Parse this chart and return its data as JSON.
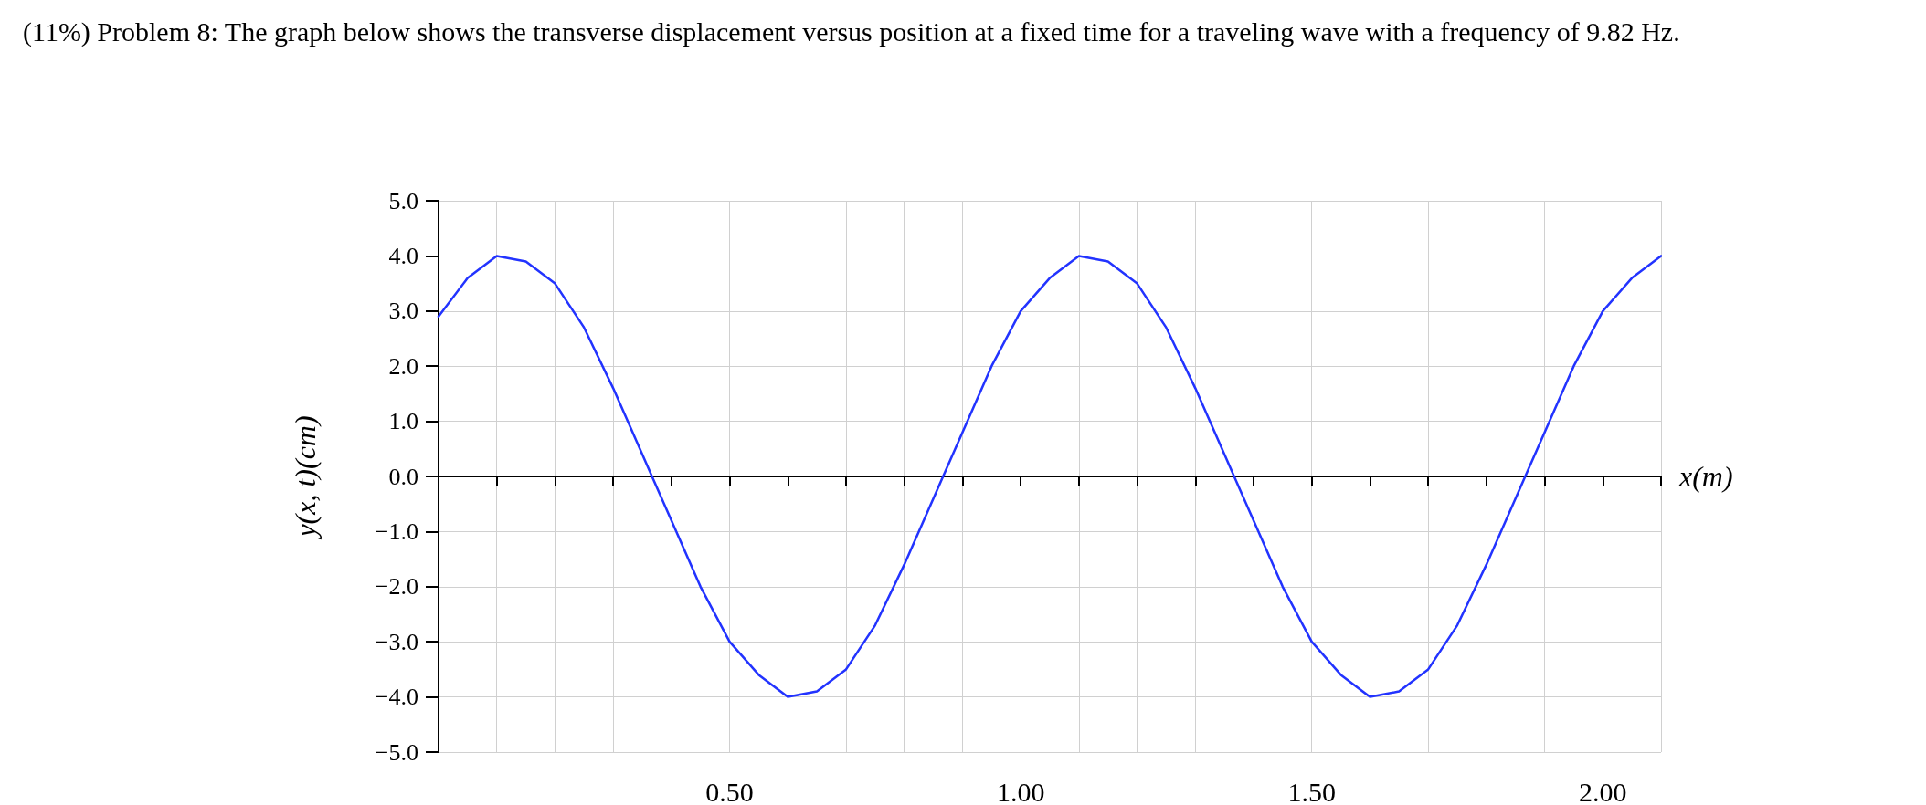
{
  "chart_data": {
    "type": "line",
    "title": "(11%) Problem 8: The graph below shows the transverse displacement versus position at a fixed time for a traveling wave with a frequency of 9.82 Hz.",
    "xlabel": "x(m)",
    "ylabel": "y(x, t)(cm)",
    "x": [
      0,
      0.05,
      0.1,
      0.15,
      0.2,
      0.25,
      0.3,
      0.35,
      0.4,
      0.45,
      0.5,
      0.55,
      0.6,
      0.65,
      0.7,
      0.75,
      0.8,
      0.85,
      0.9,
      0.95,
      1.0,
      1.05,
      1.1,
      1.15,
      1.2,
      1.25,
      1.3,
      1.35,
      1.4,
      1.45,
      1.5,
      1.55,
      1.6,
      1.65,
      1.7,
      1.75,
      1.8,
      1.85,
      1.9,
      1.95,
      2.0,
      2.05,
      2.1
    ],
    "series": [
      {
        "color": "#2233ff",
        "values": [
          2.9,
          3.6,
          4.0,
          3.9,
          3.5,
          2.7,
          1.6,
          0.4,
          -0.8,
          -2.0,
          -3.0,
          -3.6,
          -4.0,
          -3.9,
          -3.5,
          -2.7,
          -1.6,
          -0.4,
          0.8,
          2.0,
          3.0,
          3.6,
          4.0,
          3.9,
          3.5,
          2.7,
          1.6,
          0.4,
          -0.8,
          -2.0,
          -3.0,
          -3.6,
          -4.0,
          -3.9,
          -3.5,
          -2.7,
          -1.6,
          -0.4,
          0.8,
          2.0,
          3.0,
          3.6,
          4.0
        ]
      }
    ],
    "xlim": [
      0,
      2.1
    ],
    "xticks": [
      {
        "value": 0,
        "label": null
      },
      {
        "value": 0.1,
        "label": null
      },
      {
        "value": 0.2,
        "label": null
      },
      {
        "value": 0.3,
        "label": null
      },
      {
        "value": 0.4,
        "label": null
      },
      {
        "value": 0.5,
        "label": "0.50"
      },
      {
        "value": 0.6,
        "label": null
      },
      {
        "value": 0.7,
        "label": null
      },
      {
        "value": 0.8,
        "label": null
      },
      {
        "value": 0.9,
        "label": null
      },
      {
        "value": 1.0,
        "label": "1.00"
      },
      {
        "value": 1.1,
        "label": null
      },
      {
        "value": 1.2,
        "label": null
      },
      {
        "value": 1.3,
        "label": null
      },
      {
        "value": 1.4,
        "label": null
      },
      {
        "value": 1.5,
        "label": "1.50"
      },
      {
        "value": 1.6,
        "label": null
      },
      {
        "value": 1.7,
        "label": null
      },
      {
        "value": 1.8,
        "label": null
      },
      {
        "value": 1.9,
        "label": null
      },
      {
        "value": 2.0,
        "label": "2.00"
      },
      {
        "value": 2.1,
        "label": null
      }
    ],
    "ylim": [
      -5,
      5
    ],
    "yticks": [
      {
        "value": -5,
        "label": "−5.0"
      },
      {
        "value": -4,
        "label": "−4.0"
      },
      {
        "value": -3,
        "label": "−3.0"
      },
      {
        "value": -2,
        "label": "−2.0"
      },
      {
        "value": -1,
        "label": "−1.0"
      },
      {
        "value": 0,
        "label": "0.0"
      },
      {
        "value": 1,
        "label": "1.0"
      },
      {
        "value": 2,
        "label": "2.0"
      },
      {
        "value": 3,
        "label": "3.0"
      },
      {
        "value": 4,
        "label": "4.0"
      },
      {
        "value": 5,
        "label": "5.0"
      }
    ],
    "grid": true,
    "marker": "none",
    "line_style": "solid"
  }
}
